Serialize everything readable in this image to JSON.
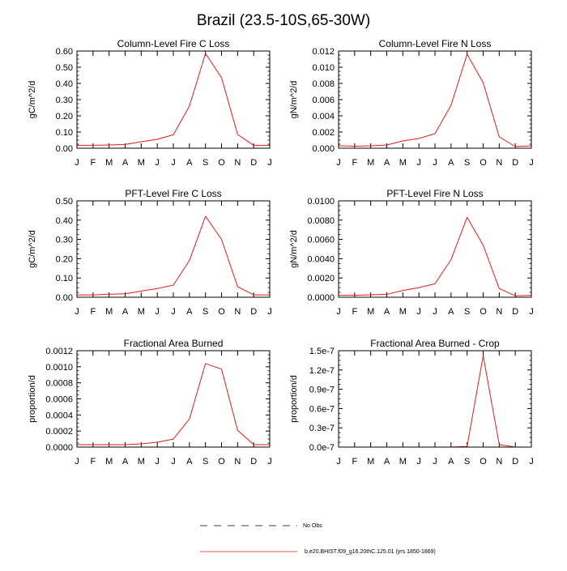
{
  "title": "Brazil (23.5-10S,65-30W)",
  "months": [
    "J",
    "F",
    "M",
    "A",
    "M",
    "J",
    "J",
    "A",
    "S",
    "O",
    "N",
    "D",
    "J"
  ],
  "colors": {
    "series": "#e31a1c",
    "axes": "#000000",
    "obs": "#000000"
  },
  "legend": {
    "items": [
      {
        "label": "No Obs",
        "style": "dashed"
      },
      {
        "label": "b.e20.BHIST.f09_g16.20thC.125.01 (yrs 1850-1869)",
        "style": "solid"
      }
    ]
  },
  "chart_data": [
    {
      "type": "line",
      "title": "Column-Level Fire C Loss",
      "ylabel": "gC/m^2/d",
      "ylim": [
        0,
        0.6
      ],
      "yticks": [
        0,
        0.1,
        0.2,
        0.3,
        0.4,
        0.5,
        0.6
      ],
      "ytick_labels": [
        "0.00",
        "0.10",
        "0.20",
        "0.30",
        "0.40",
        "0.50",
        "0.60"
      ],
      "values": [
        0.018,
        0.018,
        0.02,
        0.023,
        0.04,
        0.055,
        0.083,
        0.26,
        0.585,
        0.435,
        0.085,
        0.018,
        0.018
      ]
    },
    {
      "type": "line",
      "title": "Column-Level Fire N Loss",
      "ylabel": "gN/m^2/d",
      "ylim": [
        0,
        0.012
      ],
      "yticks": [
        0,
        0.002,
        0.004,
        0.006,
        0.008,
        0.01,
        0.012
      ],
      "ytick_labels": [
        "0.000",
        "0.002",
        "0.004",
        "0.006",
        "0.008",
        "0.010",
        "0.012"
      ],
      "values": [
        0.0003,
        0.00025,
        0.0003,
        0.0004,
        0.0009,
        0.0012,
        0.0018,
        0.0053,
        0.0116,
        0.0081,
        0.0014,
        0.0002,
        0.0003
      ]
    },
    {
      "type": "line",
      "title": "PFT-Level Fire C Loss",
      "ylabel": "gC/m^2/d",
      "ylim": [
        0,
        0.5
      ],
      "yticks": [
        0,
        0.1,
        0.2,
        0.3,
        0.4,
        0.5
      ],
      "ytick_labels": [
        "0.00",
        "0.10",
        "0.20",
        "0.30",
        "0.40",
        "0.50"
      ],
      "values": [
        0.012,
        0.012,
        0.016,
        0.018,
        0.032,
        0.045,
        0.063,
        0.19,
        0.42,
        0.3,
        0.055,
        0.012,
        0.012
      ]
    },
    {
      "type": "line",
      "title": "PFT-Level Fire N Loss",
      "ylabel": "gN/m^2/d",
      "ylim": [
        0,
        0.01
      ],
      "yticks": [
        0,
        0.002,
        0.004,
        0.006,
        0.008,
        0.01
      ],
      "ytick_labels": [
        "0.0000",
        "0.0020",
        "0.0040",
        "0.0060",
        "0.0080",
        "0.0100"
      ],
      "values": [
        0.0002,
        0.0002,
        0.00025,
        0.0003,
        0.0007,
        0.001,
        0.0014,
        0.0039,
        0.0083,
        0.0054,
        0.0009,
        0.00015,
        0.0002
      ]
    },
    {
      "type": "line",
      "title": "Fractional Area Burned",
      "ylabel": "proportion/d",
      "ylim": [
        0,
        0.0012
      ],
      "yticks": [
        0,
        0.0002,
        0.0004,
        0.0006,
        0.0008,
        0.001,
        0.0012
      ],
      "ytick_labels": [
        "0.0000",
        "0.0002",
        "0.0004",
        "0.0006",
        "0.0008",
        "0.0010",
        "0.0012"
      ],
      "values": [
        3e-05,
        3e-05,
        3e-05,
        3e-05,
        4e-05,
        6e-05,
        0.0001,
        0.00035,
        0.00104,
        0.00097,
        0.00021,
        3e-05,
        3e-05
      ]
    },
    {
      "type": "line",
      "title": "Fractional Area Burned - Crop",
      "ylabel": "proportion/d",
      "ylim": [
        0,
        1.5e-07
      ],
      "yticks": [
        0,
        3e-08,
        6e-08,
        9e-08,
        1.2e-07,
        1.5e-07
      ],
      "ytick_labels": [
        "0.0e-7",
        "0.3e-7",
        "0.6e-7",
        "0.9e-7",
        "1.2e-7",
        "1.5e-7"
      ],
      "values": [
        0,
        0,
        0,
        0,
        0,
        0,
        0,
        0,
        1e-09,
        1.42e-07,
        4e-09,
        0,
        0
      ]
    }
  ]
}
